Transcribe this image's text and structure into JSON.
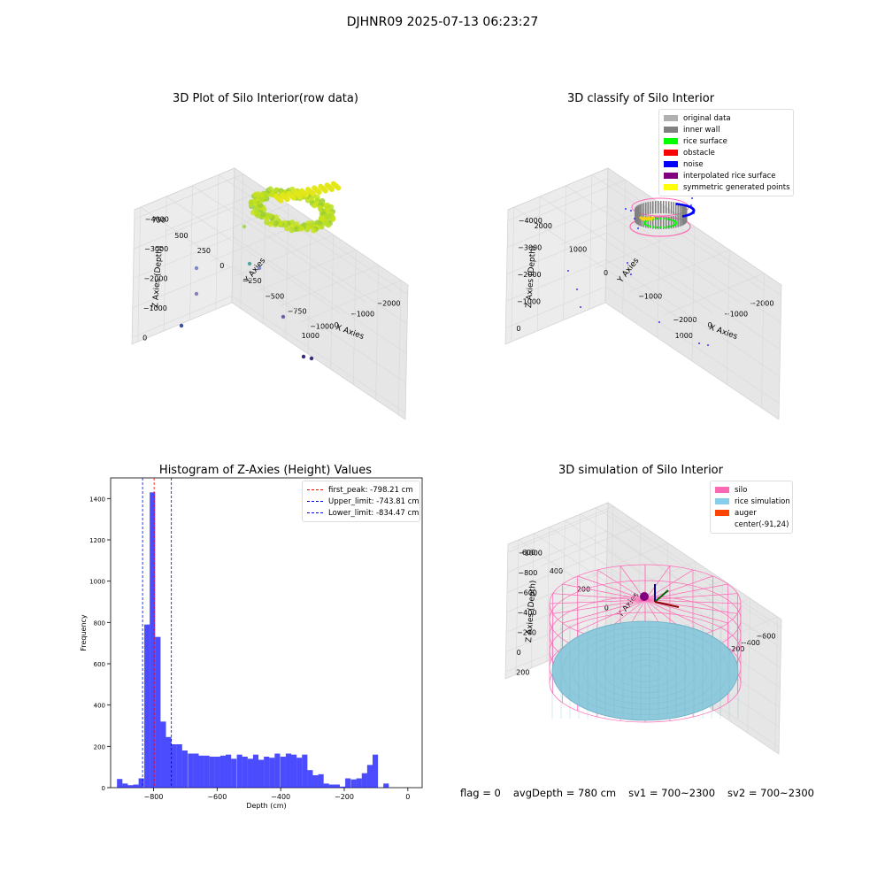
{
  "suptitle": "DJHNR09 2025-07-13 06:23:27",
  "panels": {
    "raw": {
      "title": "3D Plot of Silo Interior(row data)",
      "xlabel": "X Axies",
      "ylabel": "Y Axies",
      "zlabel": "Z Axies (Depth)",
      "xticks": [
        "−2000",
        "−1000",
        "0",
        "1000"
      ],
      "yticks": [
        "750",
        "500",
        "250",
        "0",
        "−250",
        "−500",
        "−750",
        "−1000"
      ],
      "zticks": [
        "0",
        "−1000",
        "−2000",
        "−3000",
        "−4000"
      ]
    },
    "classify": {
      "title": "3D classify of Silo Interior",
      "xlabel": "X Axies",
      "ylabel": "Y Axies",
      "zlabel": "Z Axies (Depth)",
      "xticks": [
        "−2000",
        "−1000",
        "0",
        "1000"
      ],
      "yticks": [
        "2000",
        "1000",
        "0",
        "−1000",
        "−2000"
      ],
      "zticks": [
        "0",
        "−1000",
        "−2000",
        "−3000",
        "−4000"
      ],
      "legend": [
        {
          "label": "original data",
          "color": "#b0b0b0"
        },
        {
          "label": "inner wall",
          "color": "#808080"
        },
        {
          "label": "rice surface",
          "color": "#00ff00"
        },
        {
          "label": "obstacle",
          "color": "#ff0000"
        },
        {
          "label": "noise",
          "color": "#0000ff"
        },
        {
          "label": "interpolated rice surface",
          "color": "#800080"
        },
        {
          "label": "symmetric generated points",
          "color": "#ffff00"
        }
      ]
    },
    "simulation": {
      "title": "3D simulation of Silo Interior",
      "xlabel": "X Axies",
      "ylabel": "Y Axies",
      "zlabel": "Z Axies (Depth)",
      "xticks": [
        "−600",
        "−400",
        "−200",
        "0",
        "200",
        "400"
      ],
      "yticks": [
        "600",
        "400",
        "200",
        "0",
        "−200",
        "−400",
        "−600"
      ],
      "zticks": [
        "200",
        "0",
        "−200",
        "−400",
        "−600",
        "−800",
        "−1000"
      ],
      "legend": [
        {
          "label": "silo",
          "color": "#ff69b4"
        },
        {
          "label": "rice simulation",
          "color": "#87ceeb"
        },
        {
          "label": "auger",
          "color": "#ff4500"
        },
        {
          "label": "center(-91,24)",
          "color": "#ffffff"
        }
      ]
    }
  },
  "footer": {
    "flag": "flag = 0",
    "avg": "avgDepth = 780 cm",
    "sv1": "sv1 = 700~2300",
    "sv2": "sv2 = 700~2300"
  },
  "chart_data": {
    "type": "bar",
    "title": "Histogram of Z-Axies (Height) Values",
    "xlabel": "Depth (cm)",
    "ylabel": "Frequency",
    "xlim": [
      -935,
      45
    ],
    "ylim": [
      0,
      1500
    ],
    "xticks": [
      -800,
      -600,
      -400,
      -200,
      0
    ],
    "yticks": [
      0,
      200,
      400,
      600,
      800,
      1000,
      1200,
      1400
    ],
    "bar_color": "#0000ff",
    "bin_width": 17.1,
    "bin_starts": [
      -915,
      -898,
      -881,
      -864,
      -847,
      -829,
      -812,
      -795,
      -778,
      -761,
      -744,
      -727,
      -710,
      -692,
      -675,
      -658,
      -641,
      -624,
      -607,
      -590,
      -573,
      -556,
      -538,
      -521,
      -504,
      -487,
      -470,
      -453,
      -436,
      -419,
      -401,
      -384,
      -367,
      -350,
      -333,
      -316,
      -299,
      -282,
      -265,
      -248,
      -231,
      -214,
      -197,
      -179,
      -162,
      -145,
      -128,
      -111,
      -94,
      -77,
      -60,
      -43,
      -26,
      -9
    ],
    "values": [
      42,
      20,
      12,
      15,
      45,
      790,
      1430,
      730,
      320,
      245,
      210,
      210,
      180,
      165,
      165,
      155,
      155,
      150,
      150,
      155,
      160,
      140,
      160,
      150,
      140,
      160,
      135,
      150,
      145,
      165,
      150,
      165,
      160,
      145,
      160,
      85,
      60,
      65,
      20,
      15,
      15,
      5,
      45,
      40,
      45,
      70,
      110,
      160,
      0,
      20,
      0,
      0,
      0,
      0
    ],
    "vlines": [
      {
        "label": "first_peak: -798.21 cm",
        "x": -798.21,
        "color": "#ff0000"
      },
      {
        "label": "Upper_limit: -743.81 cm",
        "x": -743.81,
        "color": "#0000ff"
      },
      {
        "label": "Lower_limit: -834.47 cm",
        "x": -834.47,
        "color": "#0000ff"
      }
    ]
  }
}
